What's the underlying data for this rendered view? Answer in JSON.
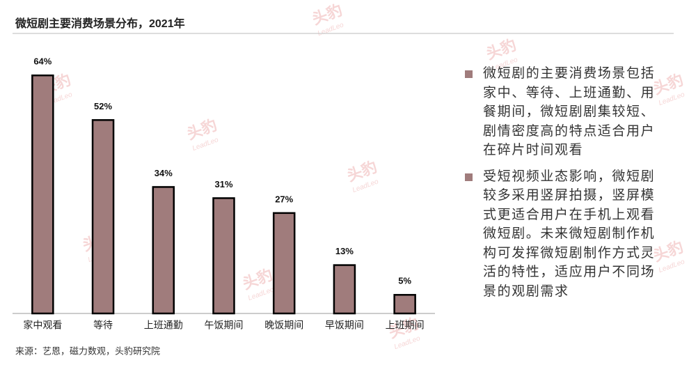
{
  "chart_data": {
    "type": "bar",
    "title": "微短剧主要消费场景分布，2021年",
    "categories": [
      "家中观看",
      "等待",
      "上班通勤",
      "午饭期间",
      "晚饭期间",
      "早饭期间",
      "上班期间"
    ],
    "values": [
      64,
      52,
      34,
      31,
      27,
      13,
      5
    ],
    "value_labels": [
      "64%",
      "52%",
      "34%",
      "31%",
      "27%",
      "13%",
      "5%"
    ],
    "color": "#a07c7c"
  },
  "notes": [
    "微短剧的主要消费场景包括家中、等待、上班通勤、用餐期间，微短剧剧集较短、剧情密度高的特点适合用户在碎片时间观看",
    "受短视频业态影响，微短剧较多采用竖屏拍摄，竖屏模式更适合用户在手机上观看微短剧。未来微短剧制作机构可发挥微短剧制作方式灵活的特性，适应用户不同场景的观剧需求"
  ],
  "source": "来源：艺恩，磁力数观，头豹研究院",
  "watermark": {
    "brand": "头豹",
    "sub": "LeadLeo"
  }
}
